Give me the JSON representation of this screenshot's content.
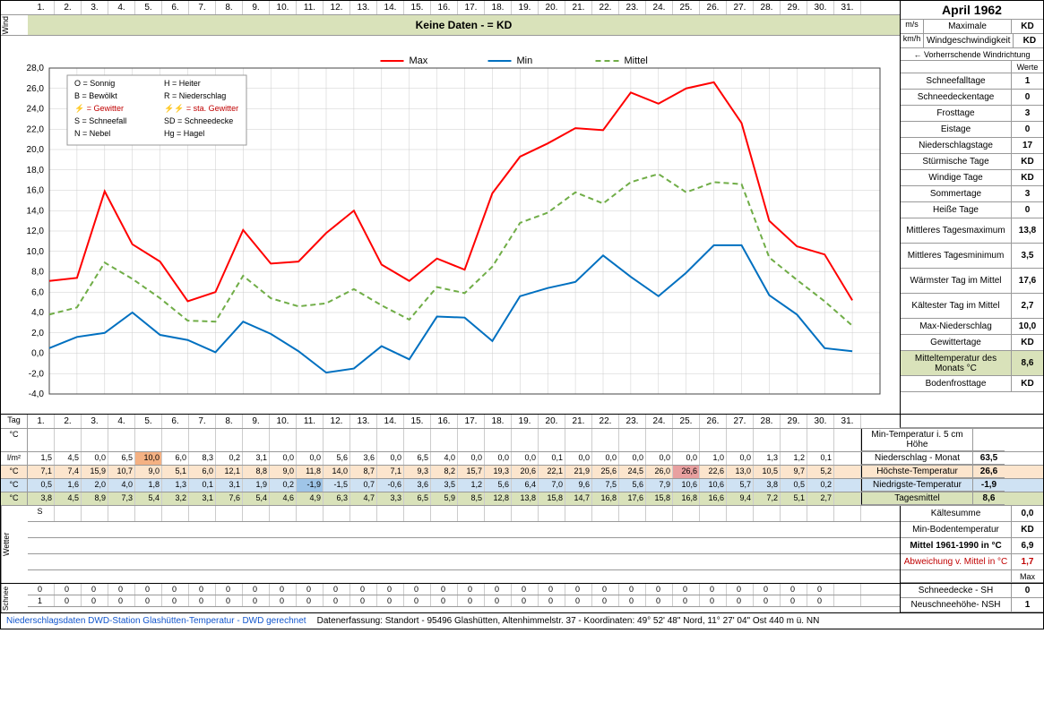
{
  "title": "April 1962",
  "days": [
    "1.",
    "2.",
    "3.",
    "4.",
    "5.",
    "6.",
    "7.",
    "8.",
    "9.",
    "10.",
    "11.",
    "12.",
    "13.",
    "14.",
    "15.",
    "16.",
    "17.",
    "18.",
    "19.",
    "20.",
    "21.",
    "22.",
    "23.",
    "24.",
    "25.",
    "26.",
    "27.",
    "28.",
    "29.",
    "30.",
    "31."
  ],
  "wind_band": "Keine Daten -  = KD",
  "wind_vert_label": "Wind",
  "wind_units": [
    "m/s",
    "km/h"
  ],
  "wind_right_label1": "Maximale",
  "wind_right_label2": "Windgeschwindigkeit",
  "wind_dir_label": "← Vorherrschende Windrichtung",
  "werte_label": "Werte",
  "chart": {
    "ylim": [
      -4,
      28
    ],
    "ytick_step": 2,
    "x_count": 31,
    "series": {
      "max": {
        "label": "Max",
        "color": "#ff0000",
        "dash": "",
        "width": 2,
        "values": [
          7.1,
          7.4,
          15.9,
          10.7,
          9.0,
          5.1,
          6.0,
          12.1,
          8.8,
          9.0,
          11.8,
          14.0,
          8.7,
          7.1,
          9.3,
          8.2,
          15.7,
          19.3,
          20.6,
          22.1,
          21.9,
          25.6,
          24.5,
          26.0,
          26.6,
          22.6,
          13.0,
          10.5,
          9.7,
          5.2
        ]
      },
      "min": {
        "label": "Min",
        "color": "#0070c0",
        "dash": "",
        "width": 2,
        "values": [
          0.5,
          1.6,
          2.0,
          4.0,
          1.8,
          1.3,
          0.1,
          3.1,
          1.9,
          0.2,
          -1.9,
          -1.5,
          0.7,
          -0.6,
          3.6,
          3.5,
          1.2,
          5.6,
          6.4,
          7.0,
          9.6,
          7.5,
          5.6,
          7.9,
          10.6,
          10.6,
          5.7,
          3.8,
          0.5,
          0.2
        ]
      },
      "mittel": {
        "label": "Mittel",
        "color": "#70ad47",
        "dash": "6,4",
        "width": 2,
        "values": [
          3.8,
          4.5,
          8.9,
          7.3,
          5.4,
          3.2,
          3.1,
          7.6,
          5.4,
          4.6,
          4.9,
          6.3,
          4.7,
          3.3,
          6.5,
          5.9,
          8.5,
          12.8,
          13.8,
          15.8,
          14.7,
          16.8,
          17.6,
          15.8,
          16.8,
          16.6,
          9.4,
          7.2,
          5.1,
          2.7
        ]
      }
    },
    "legend_symbols": [
      {
        "k": "O",
        "v": "Sonnig"
      },
      {
        "k": "H",
        "v": "Heiter"
      },
      {
        "k": "B",
        "v": "Bewölkt"
      },
      {
        "k": "R",
        "v": "Niederschlag"
      },
      {
        "k": "⚡",
        "v": "Gewitter",
        "red": true
      },
      {
        "k": "⚡⚡",
        "v": "sta. Gewitter",
        "red": true
      },
      {
        "k": "S",
        "v": "Schneefall"
      },
      {
        "k": "SD",
        "v": "Schneedecke"
      },
      {
        "k": "N",
        "v": "Nebel"
      },
      {
        "k": "Hg",
        "v": "Hagel"
      }
    ]
  },
  "stats": [
    {
      "label": "Schneefalltage",
      "val": "1"
    },
    {
      "label": "Schneedeckentage",
      "val": "0"
    },
    {
      "label": "Frosttage",
      "val": "3"
    },
    {
      "label": "Eistage",
      "val": "0"
    },
    {
      "label": "Niederschlagstage",
      "val": "17"
    },
    {
      "label": "Stürmische Tage",
      "val": "KD"
    },
    {
      "label": "Windige Tage",
      "val": "KD"
    },
    {
      "label": "Sommertage",
      "val": "3"
    },
    {
      "label": "Heiße Tage",
      "val": "0"
    },
    {
      "label": "Mittleres Tagesmaximum",
      "val": "13,8"
    },
    {
      "label": "Mittleres Tagesminimum",
      "val": "3,5"
    },
    {
      "label": "Wärmster Tag im Mittel",
      "val": "17,6"
    },
    {
      "label": "Kältester Tag im Mittel",
      "val": "2,7"
    },
    {
      "label": "Max-Niederschlag",
      "val": "10,0"
    },
    {
      "label": "Gewittertage",
      "val": "KD"
    },
    {
      "label": "Mitteltemperatur des Monats °C",
      "val": "8,6",
      "bg": "hl-green"
    },
    {
      "label": "Bodenfrosttage",
      "val": "KD"
    }
  ],
  "tag_label": "Tag",
  "table_rows": [
    {
      "unit": "°C",
      "label": "",
      "right_label": "Min-Temperatur i. 5 cm Höhe",
      "right_val": ""
    },
    {
      "unit": "l/m²",
      "cells": [
        "1,5",
        "4,5",
        "0,0",
        "6,5",
        "10,0",
        "6,0",
        "8,3",
        "0,2",
        "3,1",
        "0,0",
        "0,0",
        "5,6",
        "3,6",
        "0,0",
        "6,5",
        "4,0",
        "0,0",
        "0,0",
        "0,0",
        "0,1",
        "0,0",
        "0,0",
        "0,0",
        "0,0",
        "0,0",
        "1,0",
        "0,0",
        "1,3",
        "1,2",
        "0,1"
      ],
      "hl": {
        "4": "hl-orange"
      },
      "right_label": "Niederschlag - Monat",
      "right_val": "63,5"
    },
    {
      "unit": "°C",
      "bg": "hl-pale",
      "cells": [
        "7,1",
        "7,4",
        "15,9",
        "10,7",
        "9,0",
        "5,1",
        "6,0",
        "12,1",
        "8,8",
        "9,0",
        "11,8",
        "14,0",
        "8,7",
        "7,1",
        "9,3",
        "8,2",
        "15,7",
        "19,3",
        "20,6",
        "22,1",
        "21,9",
        "25,6",
        "24,5",
        "26,0",
        "26,6",
        "22,6",
        "13,0",
        "10,5",
        "9,7",
        "5,2"
      ],
      "hl": {
        "24": "hl-redstrong"
      },
      "right_label": "Höchste-Temperatur",
      "right_val": "26,6",
      "right_bg": "hl-pale"
    },
    {
      "unit": "°C",
      "bg": "hl-blue",
      "cells": [
        "0,5",
        "1,6",
        "2,0",
        "4,0",
        "1,8",
        "1,3",
        "0,1",
        "3,1",
        "1,9",
        "0,2",
        "-1,9",
        "-1,5",
        "0,7",
        "-0,6",
        "3,6",
        "3,5",
        "1,2",
        "5,6",
        "6,4",
        "7,0",
        "9,6",
        "7,5",
        "5,6",
        "7,9",
        "10,6",
        "10,6",
        "5,7",
        "3,8",
        "0,5",
        "0,2"
      ],
      "hl": {
        "10": "hl-bluestrong"
      },
      "right_label": "Niedrigste-Temperatur",
      "right_val": "-1,9",
      "right_bg": "hl-blue"
    },
    {
      "unit": "°C",
      "bg": "hl-green",
      "cells": [
        "3,8",
        "4,5",
        "8,9",
        "7,3",
        "5,4",
        "3,2",
        "3,1",
        "7,6",
        "5,4",
        "4,6",
        "4,9",
        "6,3",
        "4,7",
        "3,3",
        "6,5",
        "5,9",
        "8,5",
        "12,8",
        "13,8",
        "15,8",
        "14,7",
        "16,8",
        "17,6",
        "15,8",
        "16,8",
        "16,6",
        "9,4",
        "7,2",
        "5,1",
        "2,7"
      ],
      "right_label": "Tagesmittel",
      "right_val": "8,6",
      "right_bg": "hl-green"
    }
  ],
  "extra_stats": [
    {
      "label": "Kältesumme",
      "val": "0,0"
    },
    {
      "label": "Min-Bodentemperatur",
      "val": "KD"
    },
    {
      "label": "Mittel 1961-1990 in °C",
      "val": "6,9",
      "bold": true
    },
    {
      "label": "Abweichung v. Mittel in °C",
      "val": "1,7",
      "red": true
    }
  ],
  "wetter_label": "Wetter",
  "wetter_row": [
    "S",
    "",
    "",
    "",
    "",
    "",
    "",
    "",
    "",
    "",
    "",
    "",
    "",
    "",
    "",
    "",
    "",
    "",
    "",
    "",
    "",
    "",
    "",
    "",
    "",
    "",
    "",
    "",
    "",
    ""
  ],
  "max_label": "Max",
  "schnee_label": "Schnee",
  "schnee_rows": [
    {
      "cells": [
        "0",
        "0",
        "0",
        "0",
        "0",
        "0",
        "0",
        "0",
        "0",
        "0",
        "0",
        "0",
        "0",
        "0",
        "0",
        "0",
        "0",
        "0",
        "0",
        "0",
        "0",
        "0",
        "0",
        "0",
        "0",
        "0",
        "0",
        "0",
        "0",
        "0"
      ],
      "right_label": "Schneedecke -   SH",
      "right_val": "0"
    },
    {
      "cells": [
        "1",
        "0",
        "0",
        "0",
        "0",
        "0",
        "0",
        "0",
        "0",
        "0",
        "0",
        "0",
        "0",
        "0",
        "0",
        "0",
        "0",
        "0",
        "0",
        "0",
        "0",
        "0",
        "0",
        "0",
        "0",
        "0",
        "0",
        "0",
        "0",
        "0"
      ],
      "right_label": "Neuschneehöhe- NSH",
      "right_val": "1"
    }
  ],
  "footer_left": "Niederschlagsdaten DWD-Station Glashütten-Temperatur -  DWD gerechnet",
  "footer_right": "Datenerfassung:  Standort -  95496  Glashütten, Altenhimmelstr. 37 - Koordinaten:  49° 52' 48\" Nord,   11° 27' 04\" Ost   440 m ü. NN"
}
